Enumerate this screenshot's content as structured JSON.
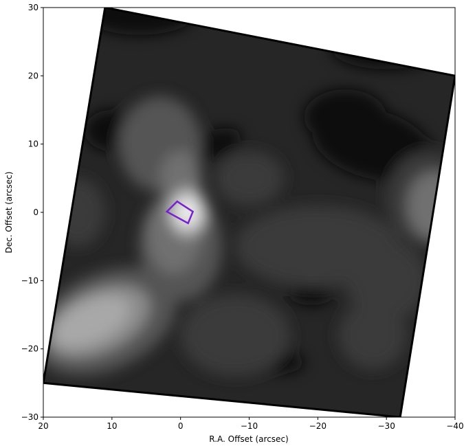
{
  "chart_data": {
    "type": "heatmap",
    "title": "",
    "xlabel": "R.A. Offset (arcsec)",
    "ylabel": "Dec. Offset (arcsec)",
    "xlim": [
      20,
      -40
    ],
    "ylim": [
      -30,
      30
    ],
    "x_ticks": [
      20,
      10,
      0,
      -10,
      -20,
      -30,
      -40
    ],
    "y_ticks": [
      30,
      20,
      10,
      0,
      -10,
      -20,
      -30
    ],
    "x_tick_labels": [
      "20",
      "10",
      "0",
      "−10",
      "−20",
      "−30",
      "−40"
    ],
    "y_tick_labels": [
      "30",
      "20",
      "10",
      "0",
      "−10",
      "−20",
      "−30"
    ],
    "grid": false,
    "colormap": "grayscale filled contours",
    "contour_levels": [
      {
        "level": 1,
        "color": "#0e0e0e"
      },
      {
        "level": 2,
        "color": "#262626"
      },
      {
        "level": 3,
        "color": "#3b3b3b"
      },
      {
        "level": 4,
        "color": "#555555"
      },
      {
        "level": 5,
        "color": "#707070"
      },
      {
        "level": 6,
        "color": "#8c8c8c"
      },
      {
        "level": 7,
        "color": "#a8a8a8"
      },
      {
        "level": 8,
        "color": "#c4c4c4"
      },
      {
        "level": 9,
        "color": "#dedede"
      },
      {
        "level": 10,
        "color": "#f2f2f2"
      }
    ],
    "map_footprint_corners": [
      [
        11,
        30
      ],
      [
        -40,
        20
      ],
      [
        -32,
        -30
      ],
      [
        20,
        -25
      ]
    ],
    "emission_peaks": [
      {
        "x": 0,
        "y": 0,
        "level": 10
      },
      {
        "x": 12,
        "y": -16,
        "level": 8
      },
      {
        "x": -37,
        "y": 0,
        "level": 6
      }
    ],
    "overlay_rectangle": {
      "color": "#7a1fd0",
      "corners": [
        [
          0.5,
          1.6
        ],
        [
          -1.8,
          0.1
        ],
        [
          -1.1,
          -1.6
        ],
        [
          2.0,
          0.1
        ]
      ]
    }
  }
}
